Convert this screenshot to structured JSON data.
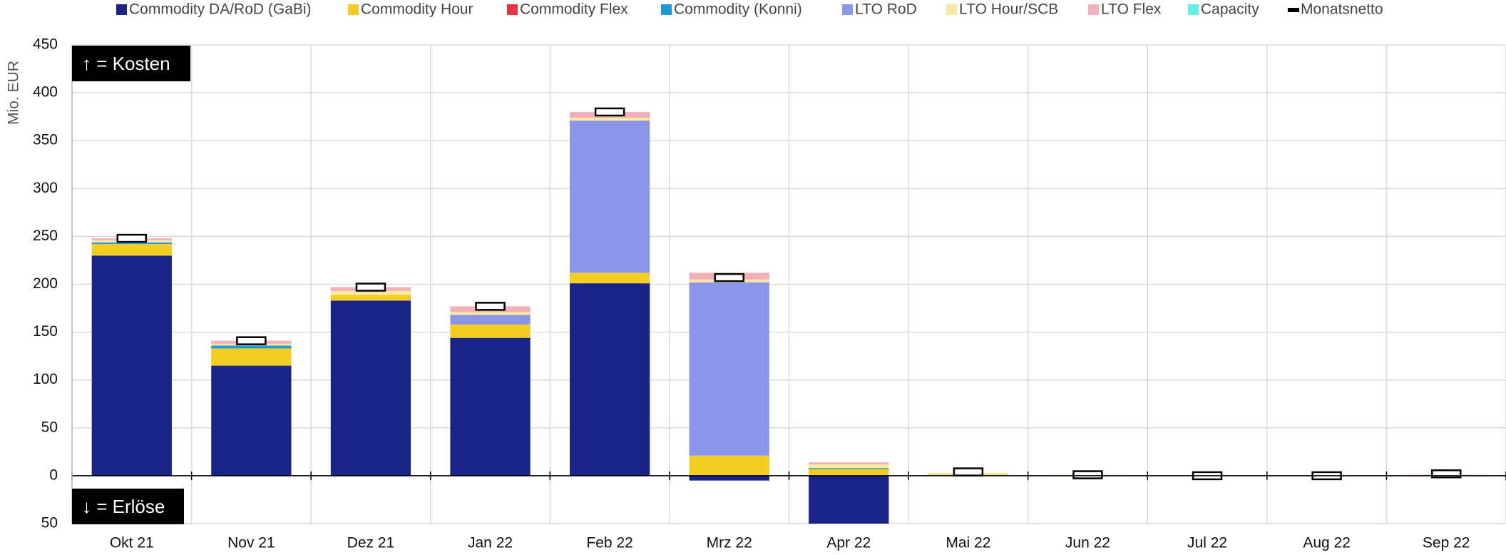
{
  "chart_data": {
    "type": "stacked-bar",
    "y_label": "Mio. EUR",
    "annotations": [
      "↑ = Kosten",
      "↓ = Erlöse"
    ],
    "categories": [
      "Okt 21",
      "Nov 21",
      "Dez 21",
      "Jan 22",
      "Feb 22",
      "Mrz 22",
      "Apr 22",
      "Mai 22",
      "Jun 22",
      "Jul 22",
      "Aug 22",
      "Sep 22"
    ],
    "series": [
      {
        "name": "Commodity DA/RoD (GaBi)",
        "color": "#1a2388",
        "values": [
          230,
          115,
          183,
          144,
          201,
          -5,
          -55,
          0,
          0,
          0,
          0,
          0
        ]
      },
      {
        "name": "Commodity Hour",
        "color": "#f2cd22",
        "values": [
          12,
          18,
          6,
          14,
          11,
          21,
          7,
          1,
          0,
          0,
          0,
          0
        ]
      },
      {
        "name": "Commodity Flex",
        "color": "#e8323c",
        "values": [
          0,
          0,
          0,
          0,
          0,
          0,
          0,
          0,
          0,
          0,
          0,
          0
        ]
      },
      {
        "name": "Commodity (Konni)",
        "color": "#1a9bd7",
        "values": [
          1,
          3,
          0,
          0,
          0,
          0,
          1,
          0,
          0,
          0,
          0,
          0
        ]
      },
      {
        "name": "LTO RoD",
        "color": "#8b96ea",
        "values": [
          1,
          0,
          0,
          10,
          159,
          181,
          0,
          0,
          0,
          0,
          0,
          0
        ]
      },
      {
        "name": "LTO Hour/SCB",
        "color": "#f7e9a0",
        "values": [
          2,
          2,
          4,
          3,
          3,
          3,
          4,
          2,
          1,
          0,
          0,
          0
        ]
      },
      {
        "name": "LTO Flex",
        "color": "#f4b0b8",
        "values": [
          2,
          3,
          4,
          6,
          6,
          7,
          2,
          0,
          0,
          0,
          0,
          1
        ]
      },
      {
        "name": "Capacity",
        "color": "#5ef2e6",
        "values": [
          0,
          0,
          0,
          0,
          0,
          0,
          0,
          0,
          0,
          0,
          0,
          0
        ]
      }
    ],
    "net": {
      "name": "Monatsnetto",
      "color": "#000000",
      "values": [
        248,
        141,
        197,
        177,
        380,
        207,
        null,
        4,
        1,
        0,
        0,
        2
      ]
    },
    "ylim": [
      -50,
      450
    ],
    "yticks": [
      {
        "value": -50,
        "label": "50"
      },
      0,
      50,
      100,
      150,
      200,
      250,
      300,
      350,
      400,
      450
    ],
    "grid": true
  }
}
